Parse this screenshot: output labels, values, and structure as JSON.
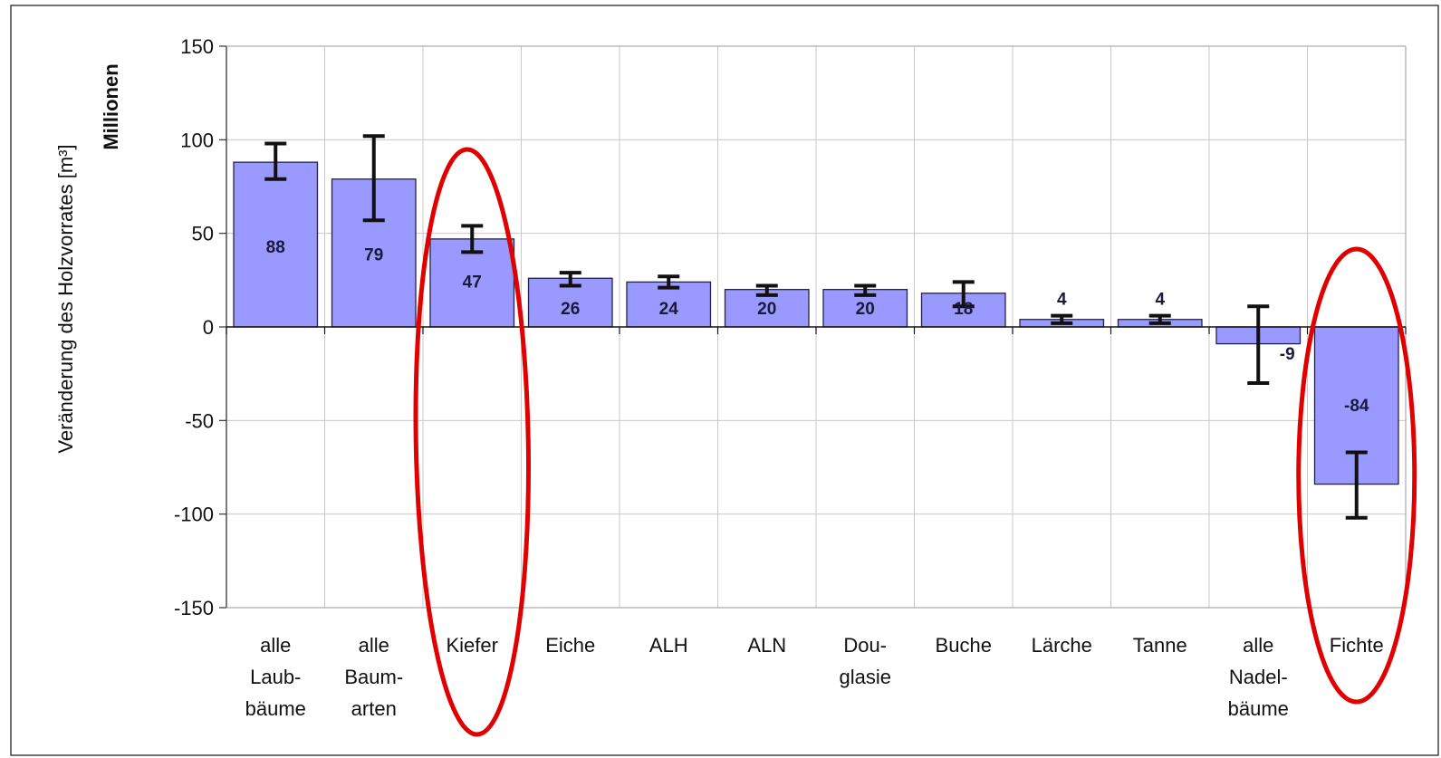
{
  "chart_data": {
    "type": "bar",
    "title": "",
    "ylabel": "Veränderung des Holzvorrates [m³]",
    "yunit": "Millionen",
    "ylim": [
      -150,
      150
    ],
    "yticks": [
      150,
      100,
      50,
      0,
      -50,
      -100,
      -150
    ],
    "grid": true,
    "categories": [
      [
        "alle",
        "Laub-",
        "bäume"
      ],
      [
        "alle",
        "Baum-",
        "arten"
      ],
      [
        "Kiefer"
      ],
      [
        "Eiche"
      ],
      [
        "ALH"
      ],
      [
        "ALN"
      ],
      [
        "Dou-",
        "glasie"
      ],
      [
        "Buche"
      ],
      [
        "Lärche"
      ],
      [
        "Tanne"
      ],
      [
        "alle",
        "Nadel-",
        "bäume"
      ],
      [
        "Fichte"
      ]
    ],
    "values": [
      88,
      79,
      47,
      26,
      24,
      20,
      20,
      18,
      4,
      4,
      -9,
      -84
    ],
    "value_labels": [
      "88",
      "79",
      "47",
      "26",
      "24",
      "20",
      "20",
      "18",
      "4",
      "4",
      "-9",
      "-84"
    ],
    "error_bars": [
      [
        79,
        98
      ],
      [
        57,
        102
      ],
      [
        40,
        54
      ],
      [
        22,
        29
      ],
      [
        21,
        27
      ],
      [
        17,
        22
      ],
      [
        17,
        22
      ],
      [
        11,
        24
      ],
      [
        2,
        6
      ],
      [
        2,
        6
      ],
      [
        -30,
        11
      ],
      [
        -102,
        -67
      ]
    ],
    "highlighted_categories": [
      "Kiefer",
      "Fichte"
    ],
    "colors": {
      "bar_fill": "#9999ff",
      "bar_stroke": "#222244",
      "grid": "#c8c8c8",
      "error_bar": "#111111",
      "highlight": "#e00000"
    }
  }
}
